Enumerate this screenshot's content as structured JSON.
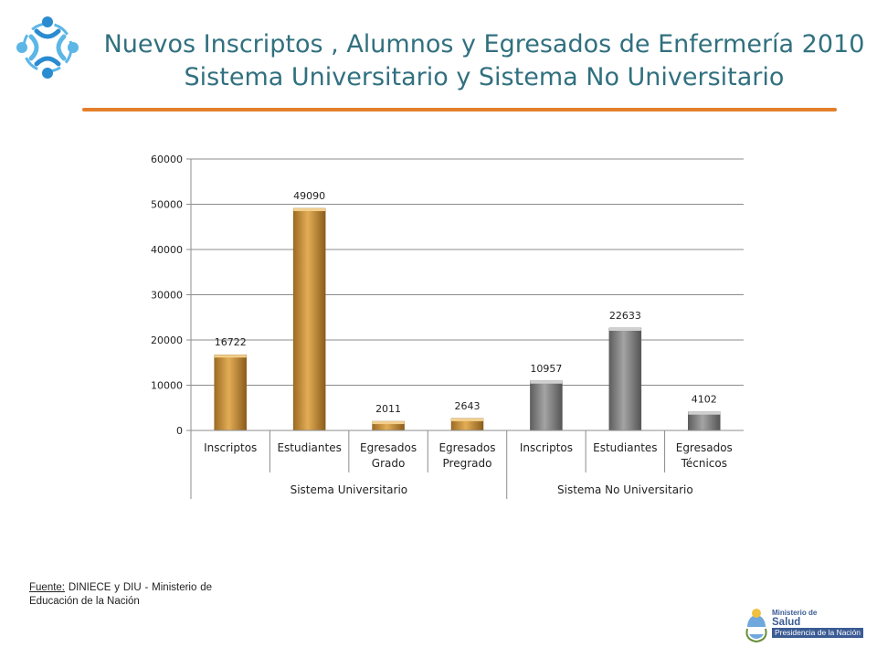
{
  "header": {
    "title_line1": "Nuevos Inscriptos , Alumnos y Egresados de Enfermería 2010",
    "title_line2": "Sistema Universitario  y Sistema No Universitario",
    "title_color": "#31707f",
    "rule_color": "#e37f2a"
  },
  "logo": {
    "icon": "four-figures-circle-logo",
    "colors": [
      "#2a8bd0",
      "#5cb6e6"
    ]
  },
  "chart_data": {
    "type": "bar",
    "ylim": [
      0,
      60000
    ],
    "yticks": [
      0,
      10000,
      20000,
      30000,
      40000,
      50000,
      60000
    ],
    "grid": true,
    "groups": [
      {
        "name": "Sistema Universitario",
        "color": "#d39c43",
        "bars": [
          {
            "label": [
              "Inscriptos"
            ],
            "value": 16722
          },
          {
            "label": [
              "Estudiantes"
            ],
            "value": 49090
          },
          {
            "label": [
              "Egresados",
              "Grado"
            ],
            "value": 2011
          },
          {
            "label": [
              "Egresados",
              "Pregrado"
            ],
            "value": 2643
          }
        ]
      },
      {
        "name": "Sistema No Universitario",
        "color": "#909090",
        "bars": [
          {
            "label": [
              "Inscriptos"
            ],
            "value": 10957
          },
          {
            "label": [
              "Estudiantes"
            ],
            "value": 22633
          },
          {
            "label": [
              "Egresados",
              "Técnicos"
            ],
            "value": 4102
          }
        ]
      }
    ]
  },
  "footer": {
    "source_label": "Fuente:",
    "source_text": " DINIECE y DIU - Ministerio de Educación de la Nación"
  },
  "ministry": {
    "line1": "Ministerio de",
    "line2": "Salud",
    "line3": "Presidencia de la Nación",
    "icon": "argentina-coat-of-arms-icon"
  }
}
